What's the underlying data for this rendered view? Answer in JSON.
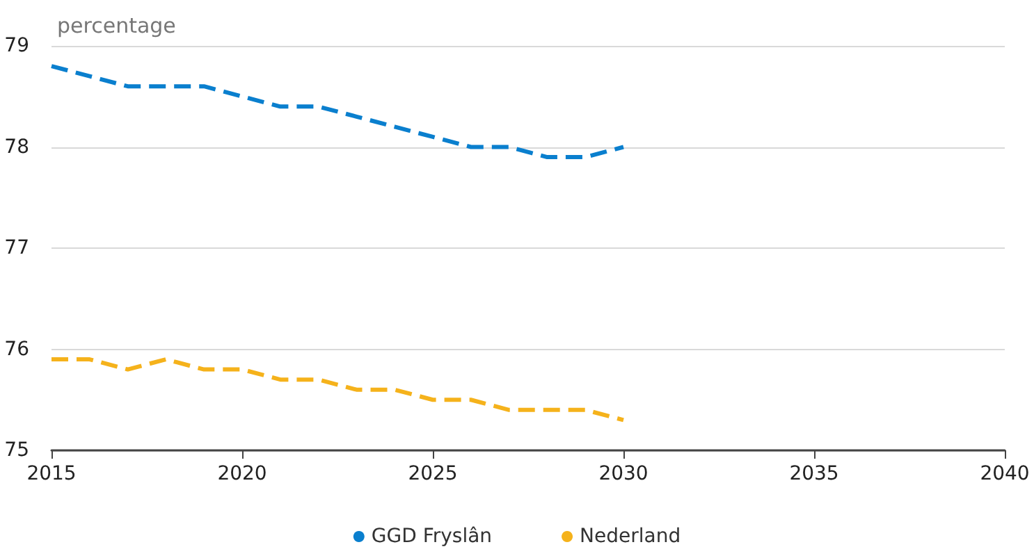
{
  "chart_data": {
    "type": "line",
    "ylabel": "percentage",
    "x": [
      2015,
      2016,
      2017,
      2018,
      2019,
      2020,
      2021,
      2022,
      2023,
      2024,
      2025,
      2026,
      2027,
      2028,
      2029,
      2030
    ],
    "series": [
      {
        "name": "GGD Fryslân",
        "color": "#0a7fce",
        "values": [
          78.8,
          78.7,
          78.6,
          78.6,
          78.6,
          78.5,
          78.4,
          78.4,
          78.3,
          78.2,
          78.1,
          78.0,
          78.0,
          77.9,
          77.9,
          78.0
        ]
      },
      {
        "name": "Nederland",
        "color": "#f5b21b",
        "values": [
          75.9,
          75.9,
          75.8,
          75.9,
          75.8,
          75.8,
          75.7,
          75.7,
          75.6,
          75.6,
          75.5,
          75.5,
          75.4,
          75.4,
          75.4,
          75.3
        ]
      }
    ],
    "xlim": [
      2015,
      2040
    ],
    "xticks": [
      2015,
      2020,
      2025,
      2030,
      2035,
      2040
    ],
    "ylim": [
      75,
      79
    ],
    "yticks": [
      75,
      76,
      77,
      78,
      79
    ],
    "grid": "y",
    "legend": "bottom",
    "marker": "none",
    "line_style": "dashed"
  }
}
